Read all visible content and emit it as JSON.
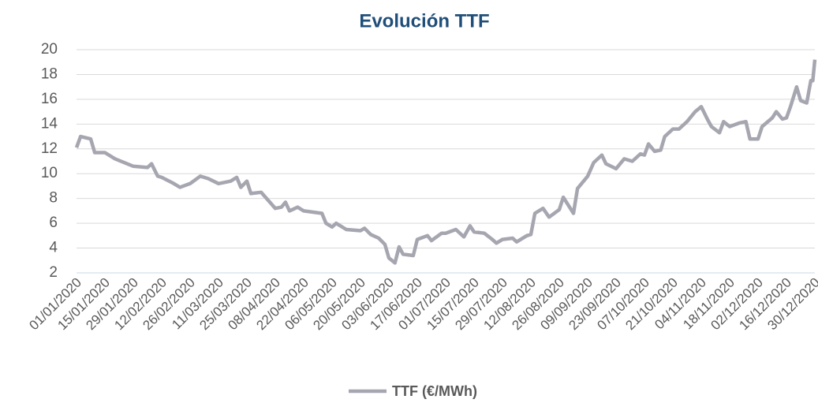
{
  "chart_data": {
    "type": "line",
    "title": "Evolución TTF",
    "x": [
      "01/01/2020",
      "03/01/2020",
      "08/01/2020",
      "10/01/2020",
      "15/01/2020",
      "20/01/2020",
      "29/01/2020",
      "05/02/2020",
      "07/02/2020",
      "10/02/2020",
      "12/02/2020",
      "18/02/2020",
      "21/02/2020",
      "26/02/2020",
      "02/03/2020",
      "06/03/2020",
      "11/03/2020",
      "17/03/2020",
      "20/03/2020",
      "22/03/2020",
      "25/03/2020",
      "27/03/2020",
      "01/04/2020",
      "08/04/2020",
      "11/04/2020",
      "13/04/2020",
      "15/04/2020",
      "19/04/2020",
      "22/04/2020",
      "01/05/2020",
      "03/05/2020",
      "06/05/2020",
      "08/05/2020",
      "13/05/2020",
      "20/05/2020",
      "22/05/2020",
      "25/05/2020",
      "29/05/2020",
      "01/06/2020",
      "03/06/2020",
      "06/06/2020",
      "08/06/2020",
      "10/06/2020",
      "15/06/2020",
      "17/06/2020",
      "22/06/2020",
      "24/06/2020",
      "29/06/2020",
      "01/07/2020",
      "06/07/2020",
      "10/07/2020",
      "13/07/2020",
      "15/07/2020",
      "20/07/2020",
      "24/07/2020",
      "26/07/2020",
      "29/07/2020",
      "03/08/2020",
      "05/08/2020",
      "10/08/2020",
      "12/08/2020",
      "14/08/2020",
      "18/08/2020",
      "21/08/2020",
      "26/08/2020",
      "28/08/2020",
      "02/09/2020",
      "04/09/2020",
      "09/09/2020",
      "12/09/2020",
      "16/09/2020",
      "18/09/2020",
      "23/09/2020",
      "27/09/2020",
      "01/10/2020",
      "05/10/2020",
      "07/10/2020",
      "09/10/2020",
      "12/10/2020",
      "15/10/2020",
      "17/10/2020",
      "21/10/2020",
      "24/10/2020",
      "28/10/2020",
      "01/11/2020",
      "04/11/2020",
      "07/11/2020",
      "09/11/2020",
      "13/11/2020",
      "15/11/2020",
      "18/11/2020",
      "23/11/2020",
      "26/11/2020",
      "28/11/2020",
      "02/12/2020",
      "04/12/2020",
      "09/12/2020",
      "11/12/2020",
      "14/12/2020",
      "16/12/2020",
      "18/12/2020",
      "21/12/2020",
      "23/12/2020",
      "26/12/2020",
      "28/12/2020",
      "29/12/2020",
      "30/12/2020"
    ],
    "series": [
      {
        "name": "TTF (€/MWh)",
        "color": "#a6a6b0",
        "values": [
          12.1,
          13.0,
          12.8,
          11.7,
          11.7,
          11.2,
          10.6,
          10.5,
          10.8,
          9.8,
          9.7,
          9.2,
          8.9,
          9.2,
          9.8,
          9.6,
          9.2,
          9.4,
          9.7,
          8.9,
          9.4,
          8.4,
          8.5,
          7.2,
          7.3,
          7.7,
          7.0,
          7.3,
          7.0,
          6.8,
          6.0,
          5.7,
          6.0,
          5.5,
          5.4,
          5.6,
          5.1,
          4.8,
          4.3,
          3.2,
          2.8,
          4.1,
          3.5,
          3.4,
          4.7,
          5.0,
          4.6,
          5.2,
          5.2,
          5.5,
          4.9,
          5.8,
          5.3,
          5.2,
          4.7,
          4.4,
          4.7,
          4.8,
          4.5,
          5.0,
          5.1,
          6.8,
          7.2,
          6.5,
          7.1,
          8.1,
          6.8,
          8.8,
          9.8,
          10.9,
          11.5,
          10.8,
          10.4,
          11.2,
          11.0,
          11.6,
          11.5,
          12.4,
          11.8,
          11.9,
          13.0,
          13.6,
          13.6,
          14.2,
          15.0,
          15.4,
          14.4,
          13.8,
          13.3,
          14.2,
          13.8,
          14.1,
          14.2,
          12.8,
          12.8,
          13.8,
          14.5,
          15.0,
          14.4,
          14.5,
          15.4,
          17.0,
          15.9,
          15.7,
          17.5,
          17.5,
          19.2
        ]
      }
    ],
    "xlim": [
      "01/01/2020",
      "30/12/2020"
    ],
    "xticks": [
      "01/01/2020",
      "15/01/2020",
      "29/01/2020",
      "12/02/2020",
      "26/02/2020",
      "11/03/2020",
      "25/03/2020",
      "08/04/2020",
      "22/04/2020",
      "06/05/2020",
      "20/05/2020",
      "03/06/2020",
      "17/06/2020",
      "01/07/2020",
      "15/07/2020",
      "29/07/2020",
      "12/08/2020",
      "26/08/2020",
      "09/09/2020",
      "23/09/2020",
      "07/10/2020",
      "21/10/2020",
      "04/11/2020",
      "18/11/2020",
      "02/12/2020",
      "16/12/2020",
      "30/12/2020"
    ],
    "ylim": [
      2,
      20
    ],
    "yticks": [
      2,
      4,
      6,
      8,
      10,
      12,
      14,
      16,
      18,
      20
    ],
    "grid": true,
    "legend": "bottom"
  }
}
